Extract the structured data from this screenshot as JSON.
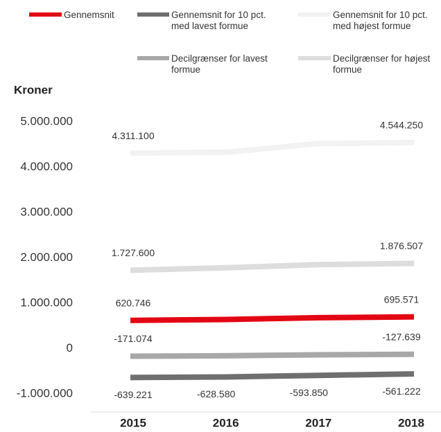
{
  "chart_data": {
    "type": "line",
    "y_label": "Kroner",
    "categories": [
      "2015",
      "2016",
      "2017",
      "2018"
    ],
    "series": [
      {
        "name": "Gennemsnit",
        "color": "#e30613",
        "values": [
          620746,
          640000,
          680000,
          695571
        ],
        "value_labels": [
          "620.746",
          null,
          null,
          "695.571"
        ]
      },
      {
        "name": "Gennemsnit for 10 pct. med lavest formue",
        "color": "#6f6f6f",
        "values": [
          -639221,
          -628580,
          -593850,
          -561222
        ],
        "value_labels": [
          "-639.221",
          "-628.580",
          "-593.850",
          "-561.222"
        ]
      },
      {
        "name": "Gennemsnit for 10 pct. med højest formue",
        "color": "#f2f2f2",
        "values": [
          4311100,
          4330000,
          4520000,
          4544250
        ],
        "value_labels": [
          "4.311.100",
          null,
          null,
          "4.544.250"
        ]
      },
      {
        "name": "Decilgrænser for lavest formue",
        "color": "#a8a8a8",
        "values": [
          -171074,
          -160000,
          -140000,
          -127639
        ],
        "value_labels": [
          "-171.074",
          null,
          null,
          "-127.639"
        ]
      },
      {
        "name": "Decilgrænser for højest formue",
        "color": "#dddddd",
        "values": [
          1727600,
          1780000,
          1850000,
          1876507
        ],
        "value_labels": [
          "1.727.600",
          null,
          null,
          "1.876.507"
        ]
      }
    ],
    "ylim": [
      -1400000,
      5000000
    ],
    "yticks": [
      {
        "value": -1000000,
        "label": "-1.000.000"
      },
      0,
      {
        "value": 1000000,
        "label": "1.000.000"
      },
      {
        "value": 2000000,
        "label": "2.000.000"
      },
      {
        "value": 3000000,
        "label": "3.000.000"
      },
      {
        "value": 4000000,
        "label": "4.000.000"
      },
      {
        "value": 5000000,
        "label": "5.000.000"
      }
    ],
    "grid": false
  }
}
